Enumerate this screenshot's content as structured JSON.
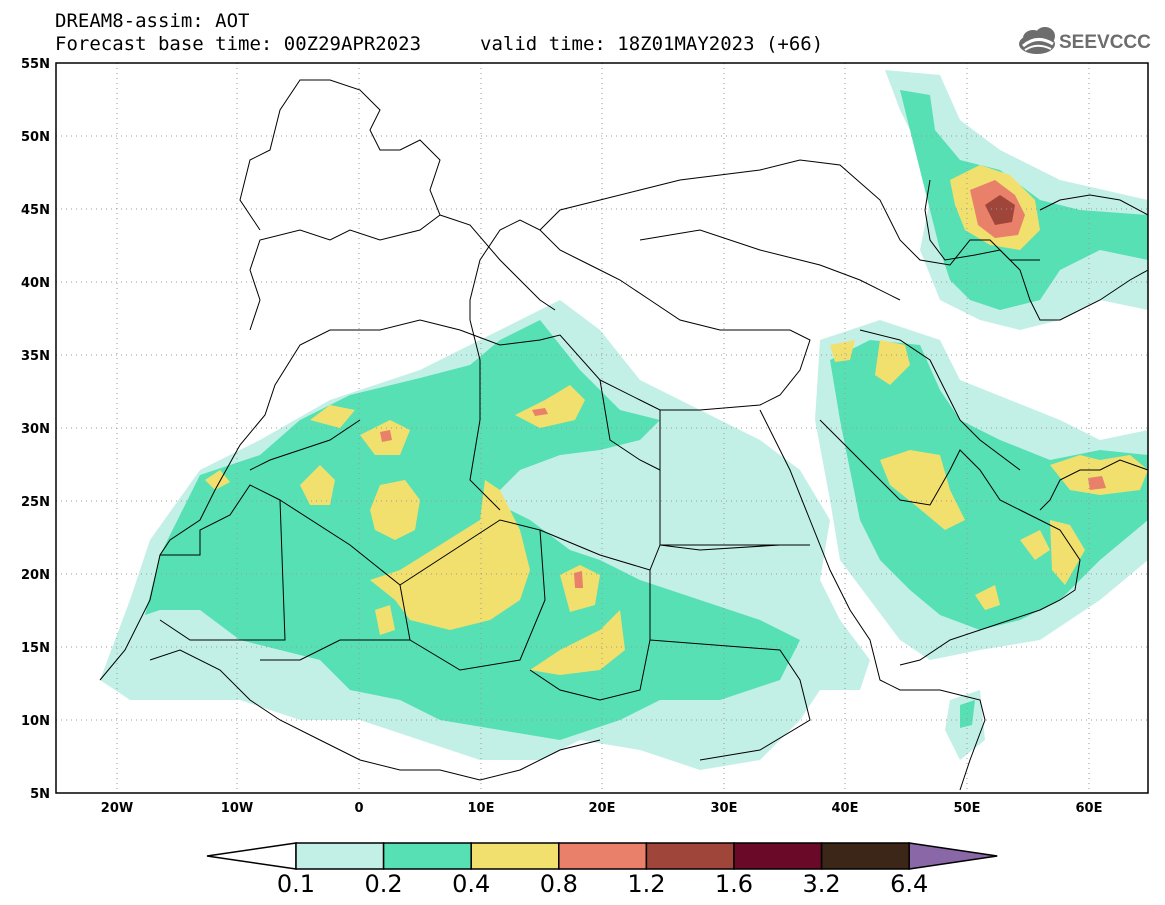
{
  "header": {
    "line1": "DREAM8-assim: AOT",
    "line2": "Forecast base time: 00Z29APR2023",
    "line3": "valid time: 18Z01MAY2023 (+66)"
  },
  "logo": {
    "text": "SEEVCCC",
    "icon": "cloud-icon"
  },
  "map": {
    "lon_ticks": [
      "20W",
      "10W",
      "0",
      "10E",
      "20E",
      "30E",
      "40E",
      "50E",
      "60E"
    ],
    "lat_ticks": [
      "55N",
      "50N",
      "45N",
      "40N",
      "35N",
      "30N",
      "25N",
      "20N",
      "15N",
      "10N",
      "5N"
    ]
  },
  "colorbar": {
    "labels": [
      "0.1",
      "0.2",
      "0.4",
      "0.8",
      "1.2",
      "1.6",
      "3.2",
      "6.4"
    ],
    "colors": [
      "#c2f0e6",
      "#56e0b4",
      "#f2e06e",
      "#e8806a",
      "#a0453a",
      "#6b0a28",
      "#3c2618",
      "#8a68a8"
    ]
  }
}
